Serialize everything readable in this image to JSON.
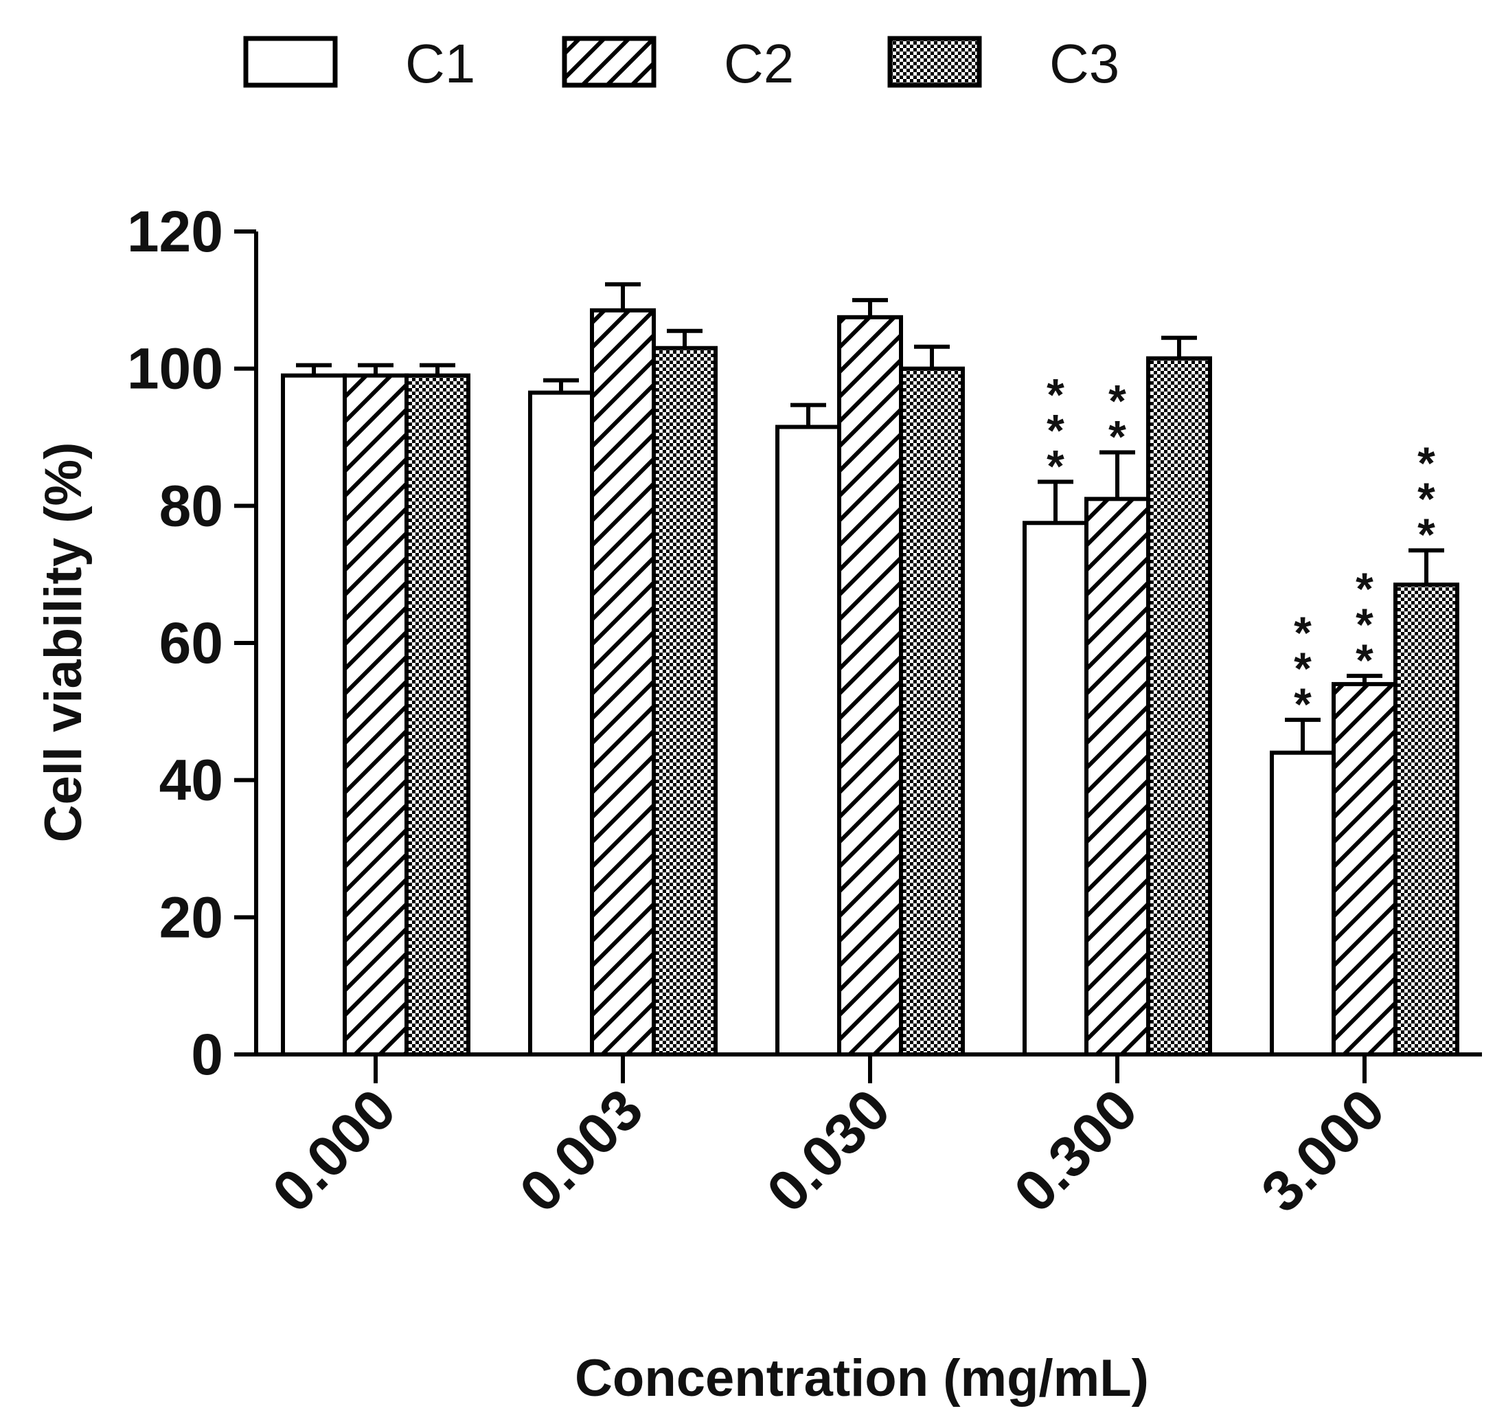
{
  "chart_data": {
    "type": "bar",
    "title": "",
    "xlabel": "Concentration (mg/mL)",
    "ylabel": "Cell viability (%)",
    "ylim": [
      0,
      120
    ],
    "yticks": [
      "0",
      "20",
      "40",
      "60",
      "80",
      "100",
      "120"
    ],
    "categories": [
      "0.000",
      "0.003",
      "0.030",
      "0.300",
      "3.000"
    ],
    "legend_position": "top",
    "series": [
      {
        "name": "C1",
        "pattern": "open",
        "values": [
          99,
          96.5,
          91.5,
          77.5,
          44
        ],
        "errors": [
          1.5,
          1.8,
          3.2,
          6.0,
          4.8
        ],
        "significance": [
          "",
          "",
          "",
          "***",
          "***"
        ]
      },
      {
        "name": "C2",
        "pattern": "hatched",
        "values": [
          99,
          108.5,
          107.5,
          81,
          54
        ],
        "errors": [
          1.5,
          3.8,
          2.5,
          6.8,
          1.2
        ],
        "significance": [
          "",
          "",
          "",
          "**",
          "***"
        ]
      },
      {
        "name": "C3",
        "pattern": "dotted",
        "values": [
          99,
          103,
          100,
          101.5,
          68.5
        ],
        "errors": [
          1.5,
          2.5,
          3.2,
          3.0,
          5.0
        ],
        "significance": [
          "",
          "",
          "",
          "",
          "***"
        ]
      }
    ]
  }
}
